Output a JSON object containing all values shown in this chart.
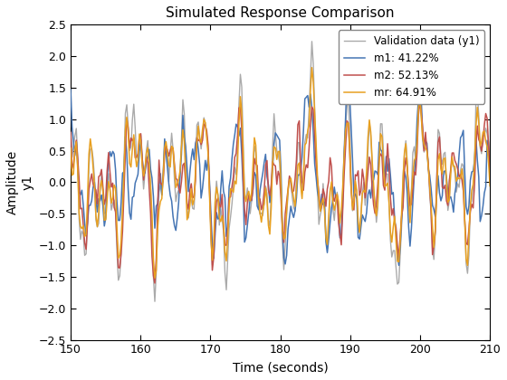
{
  "title": "Simulated Response Comparison",
  "xlabel": "Time (seconds)",
  "ylabel_line1": "Amplitude",
  "ylabel_line2": "y1",
  "xlim": [
    150,
    210
  ],
  "ylim": [
    -2.5,
    2.5
  ],
  "xticks": [
    150,
    160,
    170,
    180,
    190,
    200,
    210
  ],
  "yticks": [
    -2.5,
    -2.0,
    -1.5,
    -1.0,
    -0.5,
    0.0,
    0.5,
    1.0,
    1.5,
    2.0,
    2.5
  ],
  "legend_labels": [
    "Validation data (y1)",
    "m1: 41.22%",
    "m2: 52.13%",
    "mr: 64.91%"
  ],
  "colors": {
    "validation": "#aaaaaa",
    "m1": "#4575b4",
    "m2": "#c0504d",
    "mr": "#e8a020"
  },
  "line_widths": {
    "validation": 1.0,
    "m1": 1.1,
    "m2": 1.1,
    "mr": 1.1
  }
}
